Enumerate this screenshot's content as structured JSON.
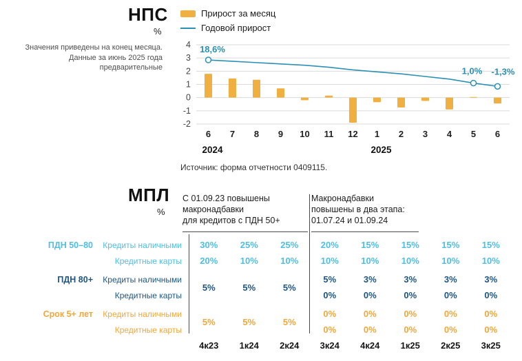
{
  "nps": {
    "title": "НПС",
    "unit": "%",
    "note_lines": [
      "Значения приведены на конец месяца.",
      "Данные за июнь 2025 года",
      "предварительные"
    ],
    "legend": [
      {
        "label": "Прирост за месяц",
        "type": "bar",
        "color": "#F0B041",
        "icon": "bar-swatch-icon"
      },
      {
        "label": "Годовой прирост",
        "type": "line",
        "color": "#2B90B4",
        "icon": "line-swatch-icon"
      }
    ],
    "source": "Источник: форма отчетности 0409115."
  },
  "chart_data": {
    "type": "bar+line",
    "title": "НПС",
    "ylabel": "%",
    "categories": [
      "6",
      "7",
      "8",
      "9",
      "10",
      "11",
      "12",
      "1",
      "2",
      "3",
      "4",
      "5",
      "6"
    ],
    "year_labels": [
      {
        "label": "2024",
        "month_index": 0
      },
      {
        "label": "2025",
        "month_index": 7
      }
    ],
    "ylim": [
      -2,
      4
    ],
    "yticks": [
      4,
      3,
      2,
      1,
      0,
      -1,
      -2
    ],
    "grid": true,
    "legend_position": "top",
    "series": [
      {
        "name": "Прирост за месяц",
        "type": "bar",
        "color": "#F0B041",
        "values": [
          1.8,
          1.45,
          1.35,
          0.7,
          -0.2,
          0.15,
          -1.9,
          -0.35,
          -0.75,
          -0.25,
          -0.9,
          0.05,
          -0.45
        ]
      },
      {
        "name": "Годовой прирост",
        "type": "line",
        "color": "#2B90B4",
        "plotted_values": [
          2.85,
          2.75,
          2.65,
          2.55,
          2.45,
          2.3,
          2.1,
          1.95,
          1.8,
          1.6,
          1.4,
          1.1,
          0.85
        ],
        "marker_indices": [
          0,
          11,
          12
        ],
        "annotations": [
          {
            "month_index": 0,
            "text": "18,6%",
            "dx": 6,
            "dy": -11
          },
          {
            "month_index": 11,
            "text": "1,0%",
            "dx": -2,
            "dy": -13
          },
          {
            "month_index": 12,
            "text": "-1,3%",
            "dx": 8,
            "dy": -17
          }
        ]
      }
    ]
  },
  "mpl": {
    "title": "МПЛ",
    "unit": "%",
    "notes": [
      {
        "lines": [
          "С 01.09.23 повышены",
          "макронадбавки",
          "для кредитов с ПДН 50+"
        ]
      },
      {
        "lines": [
          "Макронадбавки",
          "повышены в два этапа:",
          "01.07.24 и 01.09.24"
        ]
      }
    ],
    "columns": [
      "4к23",
      "1к24",
      "2к24",
      "3к24",
      "4к24",
      "1к25",
      "2к25",
      "3к25"
    ],
    "groups": [
      {
        "label": "ПДН 50–80",
        "color": "#4FBEE3",
        "rows": [
          {
            "label": "Кредиты наличными",
            "values": [
              "30%",
              "25%",
              "25%",
              "20%",
              "15%",
              "15%",
              "15%",
              "15%"
            ]
          },
          {
            "label": "Кредитные карты",
            "values": [
              "20%",
              "10%",
              "10%",
              "10%",
              "10%",
              "10%",
              "10%",
              "10%"
            ]
          }
        ]
      },
      {
        "label": "ПДН 80+",
        "color": "#1C5586",
        "merged_first3": [
          "5%",
          "5%",
          "5%"
        ],
        "rows": [
          {
            "label": "Кредиты наличными",
            "values": [
              "5%",
              "3%",
              "3%",
              "3%",
              "3%"
            ]
          },
          {
            "label": "Кредитные карты",
            "values": [
              "0%",
              "0%",
              "0%",
              "0%",
              "0%"
            ]
          }
        ]
      },
      {
        "label": "Срок 5+ лет",
        "color": "#F0A73C",
        "merged_first3": [
          "5%",
          "5%",
          "5%"
        ],
        "rows": [
          {
            "label": "Кредиты наличными",
            "values": [
              "0%",
              "0%",
              "0%",
              "0%",
              "0%"
            ]
          },
          {
            "label": "Кредитные карты",
            "values": [
              "0%",
              "0%",
              "0%",
              "0%",
              "0%"
            ]
          }
        ]
      }
    ]
  }
}
